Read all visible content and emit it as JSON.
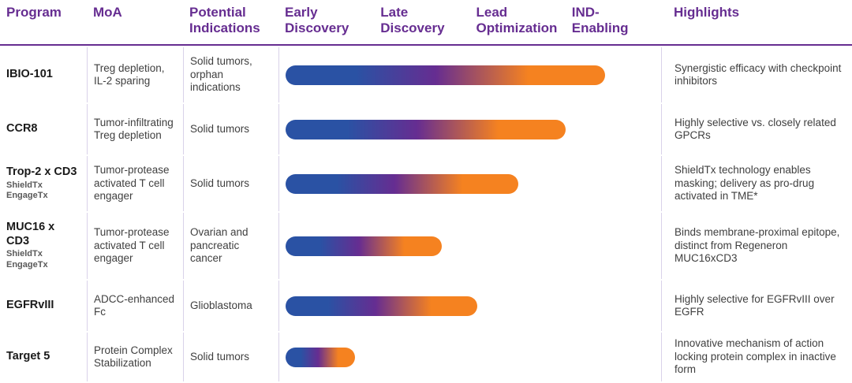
{
  "theme": {
    "purple": "#662d91",
    "blue": "#2a52a4",
    "orange": "#f58220",
    "separator": "#d9d2e9",
    "text": "#3f3f3f"
  },
  "header": {
    "program": "Program",
    "moa": "MoA",
    "indications": "Potential\nIndications",
    "highlights": "Highlights",
    "stages": [
      {
        "label": "Early\nDiscovery"
      },
      {
        "label": "Late\nDiscovery"
      },
      {
        "label": "Lead\nOptimization"
      },
      {
        "label": "IND-\nEnabling"
      }
    ]
  },
  "rows": [
    {
      "program": "IBIO-101",
      "sub": "",
      "moa": "Treg depletion, IL-2 sparing",
      "indications": "Solid tumors, orphan indications",
      "bar_pct": 85,
      "highlight": "Synergistic efficacy with checkpoint inhibitors"
    },
    {
      "program": "CCR8",
      "sub": "",
      "moa": "Tumor-infiltrating Treg depletion",
      "indications": "Solid tumors",
      "bar_pct": 74.5,
      "highlight": "Highly selective vs. closely related GPCRs"
    },
    {
      "program": "Trop-2 x CD3",
      "sub": "ShieldTx\nEngageTx",
      "moa": "Tumor-protease activated T cell engager",
      "indications": "Solid tumors",
      "bar_pct": 62,
      "highlight": "ShieldTx technology enables masking; delivery as pro-drug activated in TME*"
    },
    {
      "program": "MUC16 x CD3",
      "sub": "ShieldTx\nEngageTx",
      "moa": "Tumor-protease activated T cell engager",
      "indications": "Ovarian and pancreatic cancer",
      "bar_pct": 41.5,
      "highlight": "Binds membrane-proximal epitope, distinct from Regeneron MUC16xCD3"
    },
    {
      "program": "EGFRvIII",
      "sub": "",
      "moa": "ADCC-enhanced Fc",
      "indications": "Glioblastoma",
      "bar_pct": 51,
      "highlight": "Highly selective for EGFRvIII over EGFR"
    },
    {
      "program": "Target 5",
      "sub": "",
      "moa": "Protein Complex Stabilization",
      "indications": "Solid tumors",
      "bar_pct": 18.5,
      "highlight": "Innovative mechanism of action locking protein complex in inactive form"
    }
  ],
  "chart_data": {
    "type": "bar",
    "orientation": "horizontal",
    "title": "Therapeutic pipeline development stages",
    "categories": [
      "IBIO-101",
      "CCR8",
      "Trop-2 x CD3",
      "MUC16 x CD3",
      "EGFRvIII",
      "Target 5"
    ],
    "values": [
      3.35,
      2.95,
      2.45,
      1.65,
      2.05,
      0.75
    ],
    "value_unit": "development stages completed (0–4 scale)",
    "stage_axis": [
      "Early Discovery",
      "Late Discovery",
      "Lead Optimization",
      "IND-Enabling"
    ],
    "xlim": [
      0,
      4
    ],
    "grid": false,
    "legend": false,
    "bar_style": "rounded pill, gradient blue -> purple -> orange"
  }
}
